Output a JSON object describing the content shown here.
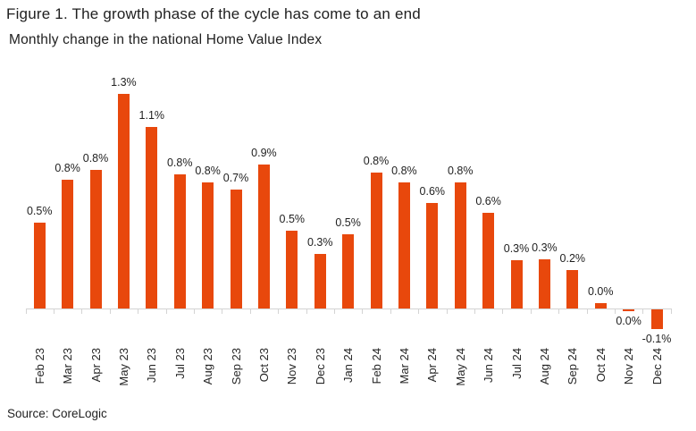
{
  "header": {
    "title": "Figure 1. The growth phase of the cycle has come to an end",
    "subtitle": "Monthly change in the national Home Value Index"
  },
  "footer": {
    "source": "Source: CoreLogic"
  },
  "colors": {
    "bar": "#E8480C",
    "axis": "#D4D4D4",
    "text": "#1F1F1F"
  },
  "chart_data": {
    "type": "bar",
    "title": "Figure 1. The growth phase of the cycle has come to an end",
    "subtitle": "Monthly change in the national Home Value Index",
    "xlabel": "",
    "ylabel": "",
    "categories": [
      "Feb 23",
      "Mar 23",
      "Apr 23",
      "May 23",
      "Jun 23",
      "Jul 23",
      "Aug 23",
      "Sep 23",
      "Oct 23",
      "Nov 23",
      "Dec 23",
      "Jan 24",
      "Feb 24",
      "Mar 24",
      "Apr 24",
      "May 24",
      "Jun 24",
      "Jul 24",
      "Aug 24",
      "Sep 24",
      "Oct 24",
      "Nov 24",
      "Dec 24"
    ],
    "values": [
      0.5,
      0.8,
      0.8,
      1.3,
      1.1,
      0.8,
      0.8,
      0.7,
      0.9,
      0.5,
      0.3,
      0.5,
      0.8,
      0.8,
      0.6,
      0.8,
      0.6,
      0.3,
      0.3,
      0.2,
      0.0,
      0.0,
      -0.1
    ],
    "values_precise": [
      0.52,
      0.78,
      0.84,
      1.3,
      1.1,
      0.81,
      0.76,
      0.72,
      0.87,
      0.47,
      0.33,
      0.45,
      0.82,
      0.76,
      0.64,
      0.76,
      0.58,
      0.29,
      0.3,
      0.23,
      0.03,
      -0.01,
      -0.12
    ],
    "value_label_format": "0.0%",
    "value_labels_shown": true,
    "ylim": [
      -0.2,
      1.4
    ],
    "grid": false,
    "legend": "none",
    "bar_color": "#E8480C"
  }
}
